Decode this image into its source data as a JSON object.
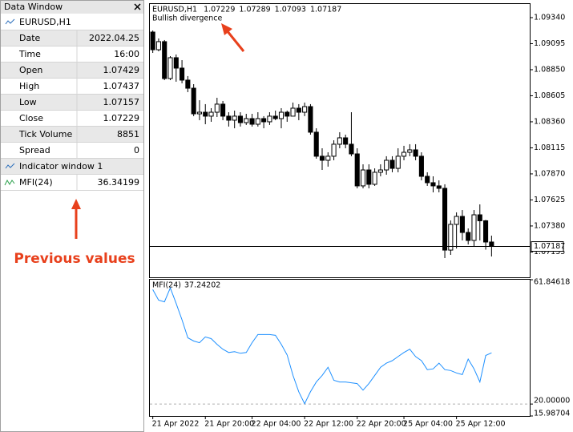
{
  "data_window": {
    "title": "Data Window",
    "rows": [
      {
        "label": "Date",
        "value": "2022.04.25"
      },
      {
        "label": "Time",
        "value": "16:00"
      },
      {
        "label": "Open"
      },
      {
        "label": "High"
      },
      {
        "label": "Low"
      },
      {
        "label": "Close"
      },
      {
        "label": "Tick Volume",
        "value": 8851
      },
      {
        "label": "Spread",
        "value": 0
      }
    ],
    "indicator_window": "Indicator window 1",
    "note": "Previous values"
  },
  "chart_data": [
    {
      "type": "candlestick",
      "title": "EURUSD,H1",
      "annotation": "Bullish divergence",
      "color": "#000000",
      "open": [
        1.09204,
        1.09038,
        1.09114,
        1.08767,
        1.08963,
        1.08865,
        1.08752,
        1.08676,
        1.08435,
        1.0845,
        1.08413,
        1.0845,
        1.08526,
        1.08413,
        1.08375,
        1.08413,
        1.08352,
        1.0839,
        1.08337,
        1.0839,
        1.0836,
        1.08413,
        1.0839,
        1.0845,
        1.08413,
        1.08488,
        1.0845,
        1.08503,
        1.08262,
        1.08036,
        1.07998,
        1.08036,
        1.08149,
        1.08209,
        1.08149,
        1.08058,
        1.07757,
        1.07907,
        1.07772,
        1.07885,
        1.07907,
        1.07998,
        1.07922,
        1.08036,
        1.08073,
        1.08096,
        1.08036,
        1.07847,
        1.07787,
        1.07757,
        1.07734,
        1.07153,
        1.07395,
        1.0747,
        1.07319,
        1.07244,
        1.07485,
        1.07429,
        1.07229
      ],
      "high": [
        1.09219,
        1.09144,
        1.09129,
        1.08978,
        1.08993,
        1.0894,
        1.0879,
        1.08714,
        1.08563,
        1.08526,
        1.08488,
        1.08586,
        1.08556,
        1.0845,
        1.08465,
        1.0845,
        1.08435,
        1.08435,
        1.0845,
        1.08413,
        1.0845,
        1.08465,
        1.08488,
        1.08465,
        1.08541,
        1.08526,
        1.08541,
        1.08526,
        1.08299,
        1.08111,
        1.08073,
        1.08186,
        1.08262,
        1.08239,
        1.0845,
        1.08111,
        1.0796,
        1.0796,
        1.07922,
        1.0796,
        1.08036,
        1.08036,
        1.08111,
        1.08134,
        1.08149,
        1.08149,
        1.08073,
        1.07885,
        1.07847,
        1.07809,
        1.07772,
        1.07432,
        1.07508,
        1.0753,
        1.07357,
        1.0753,
        1.07583,
        1.07437,
        1.07289
      ],
      "low": [
        1.09008,
        1.09023,
        1.08752,
        1.08752,
        1.08737,
        1.08722,
        1.08639,
        1.08413,
        1.08375,
        1.08337,
        1.0836,
        1.08405,
        1.08375,
        1.08315,
        1.08299,
        1.08315,
        1.0833,
        1.08315,
        1.08315,
        1.08299,
        1.0833,
        1.08375,
        1.08299,
        1.0836,
        1.08413,
        1.08375,
        1.08413,
        1.08239,
        1.08013,
        1.07907,
        1.07938,
        1.07998,
        1.08111,
        1.08111,
        1.08036,
        1.07734,
        1.07734,
        1.07734,
        1.07757,
        1.07847,
        1.07862,
        1.07885,
        1.07885,
        1.07998,
        1.08036,
        1.07998,
        1.07809,
        1.07757,
        1.07696,
        1.07696,
        1.07078,
        1.07108,
        1.07168,
        1.07244,
        1.07206,
        1.07184,
        1.07244,
        1.07157,
        1.07093
      ],
      "close": [
        1.09038,
        1.09114,
        1.08767,
        1.08963,
        1.08865,
        1.08752,
        1.08676,
        1.08435,
        1.0845,
        1.08413,
        1.0845,
        1.08526,
        1.08413,
        1.08375,
        1.08413,
        1.08352,
        1.0839,
        1.08337,
        1.0839,
        1.0836,
        1.08413,
        1.0839,
        1.0845,
        1.08413,
        1.08488,
        1.0845,
        1.08503,
        1.08262,
        1.08036,
        1.07998,
        1.08036,
        1.08149,
        1.08209,
        1.08149,
        1.08058,
        1.07757,
        1.07907,
        1.07772,
        1.07885,
        1.07907,
        1.07998,
        1.07922,
        1.08036,
        1.08073,
        1.08096,
        1.08036,
        1.07847,
        1.07787,
        1.07757,
        1.07734,
        1.07153,
        1.07395,
        1.0747,
        1.07319,
        1.07244,
        1.07485,
        1.07429,
        1.07229,
        1.07187
      ],
      "ylim": [
        1.06897,
        1.09468
      ],
      "yticks": [
        {
          "value": 1.0934,
          "label": "1.09340"
        },
        1.09095,
        {
          "value": 1.0885,
          "label": "1.08850"
        },
        1.08605,
        {
          "value": 1.0836,
          "label": "1.08360"
        },
        1.08115,
        {
          "value": 1.0787,
          "label": "1.07870"
        },
        1.07625,
        {
          "value": 1.0738,
          "label": "1.07380"
        },
        1.07135
      ]
    },
    {
      "type": "line",
      "name": "MFI(24)",
      "color": "#1e90ff",
      "categories": [
        "21 Apr 2022",
        null,
        null,
        null,
        null,
        null,
        null,
        null,
        null,
        "21 Apr 20:00",
        null,
        null,
        null,
        null,
        null,
        null,
        null,
        "22 Apr 04:00",
        null,
        null,
        null,
        null,
        null,
        null,
        null,
        null,
        "22 Apr 12:00",
        null,
        null,
        null,
        null,
        null,
        null,
        null,
        null,
        "22 Apr 20:00",
        null,
        null,
        null,
        null,
        null,
        null,
        null,
        "25 Apr 04:00",
        null,
        null,
        null,
        null,
        null,
        null,
        null,
        null,
        "25 Apr 12:00",
        null,
        null,
        null,
        null,
        null,
        null
      ],
      "values": [
        58.54,
        54.96,
        54.41,
        59.09,
        53.86,
        48.36,
        42.3,
        41.2,
        40.65,
        42.58,
        42.03,
        40.1,
        38.45,
        37.35,
        37.62,
        37.07,
        37.35,
        40.65,
        43.4,
        43.4,
        43.4,
        43.13,
        40.1,
        36.52,
        29.64,
        24.13,
        20.12,
        24.13,
        27.43,
        29.64,
        32.39,
        27.99,
        27.43,
        27.43,
        27.16,
        26.89,
        24.68,
        26.89,
        29.64,
        32.39,
        33.77,
        34.6,
        35.97,
        37.35,
        38.45,
        35.97,
        34.6,
        31.57,
        31.84,
        33.77,
        31.57,
        31.29,
        30.47,
        29.92,
        35.15,
        31.84,
        27.43,
        36.34199,
        37.24202
      ],
      "ylim": [
        15.98704,
        61.84618
      ],
      "yticks": [
        61.84618,
        {
          "value": 20,
          "label": "20.00000"
        },
        15.98704
      ]
    }
  ]
}
